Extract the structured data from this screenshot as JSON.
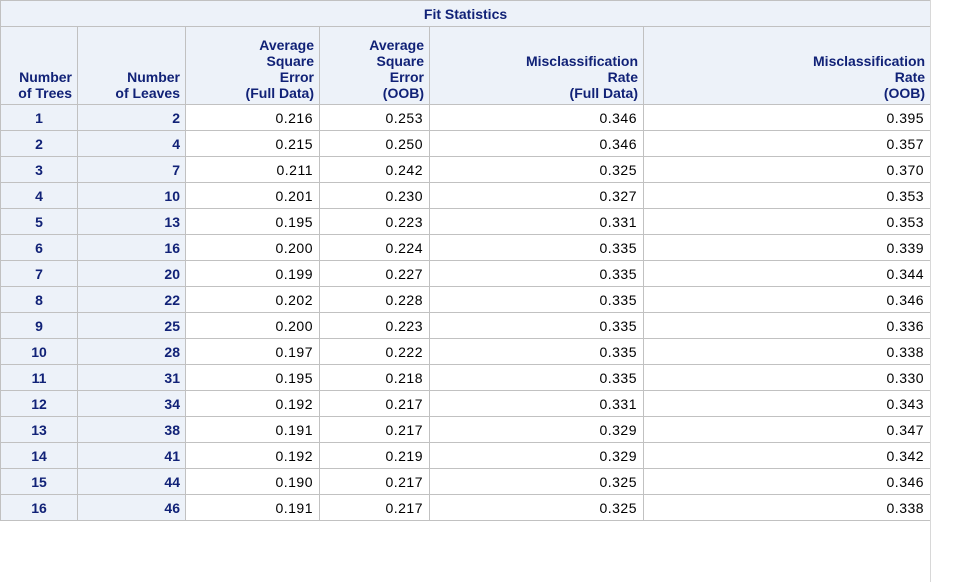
{
  "table": {
    "title": "Fit Statistics",
    "columns": [
      [
        "Number",
        "of Trees"
      ],
      [
        "Number",
        "of Leaves"
      ],
      [
        "Average",
        "Square",
        "Error",
        "(Full Data)"
      ],
      [
        "Average",
        "Square",
        "Error",
        "(OOB)"
      ],
      [
        "Misclassification",
        "Rate",
        "(Full Data)"
      ],
      [
        "Misclassification",
        "Rate",
        "(OOB)"
      ]
    ],
    "rows": [
      [
        "1",
        "2",
        "0.216",
        "0.253",
        "0.346",
        "0.395"
      ],
      [
        "2",
        "4",
        "0.215",
        "0.250",
        "0.346",
        "0.357"
      ],
      [
        "3",
        "7",
        "0.211",
        "0.242",
        "0.325",
        "0.370"
      ],
      [
        "4",
        "10",
        "0.201",
        "0.230",
        "0.327",
        "0.353"
      ],
      [
        "5",
        "13",
        "0.195",
        "0.223",
        "0.331",
        "0.353"
      ],
      [
        "6",
        "16",
        "0.200",
        "0.224",
        "0.335",
        "0.339"
      ],
      [
        "7",
        "20",
        "0.199",
        "0.227",
        "0.335",
        "0.344"
      ],
      [
        "8",
        "22",
        "0.202",
        "0.228",
        "0.335",
        "0.346"
      ],
      [
        "9",
        "25",
        "0.200",
        "0.223",
        "0.335",
        "0.336"
      ],
      [
        "10",
        "28",
        "0.197",
        "0.222",
        "0.335",
        "0.338"
      ],
      [
        "11",
        "31",
        "0.195",
        "0.218",
        "0.335",
        "0.330"
      ],
      [
        "12",
        "34",
        "0.192",
        "0.217",
        "0.331",
        "0.343"
      ],
      [
        "13",
        "38",
        "0.191",
        "0.217",
        "0.329",
        "0.347"
      ],
      [
        "14",
        "41",
        "0.192",
        "0.219",
        "0.329",
        "0.342"
      ],
      [
        "15",
        "44",
        "0.190",
        "0.217",
        "0.325",
        "0.346"
      ],
      [
        "16",
        "46",
        "0.191",
        "0.217",
        "0.325",
        "0.338"
      ]
    ]
  },
  "colors": {
    "header_bg": "#edf2f9",
    "header_text": "#112277",
    "border": "#c1c1c1"
  }
}
